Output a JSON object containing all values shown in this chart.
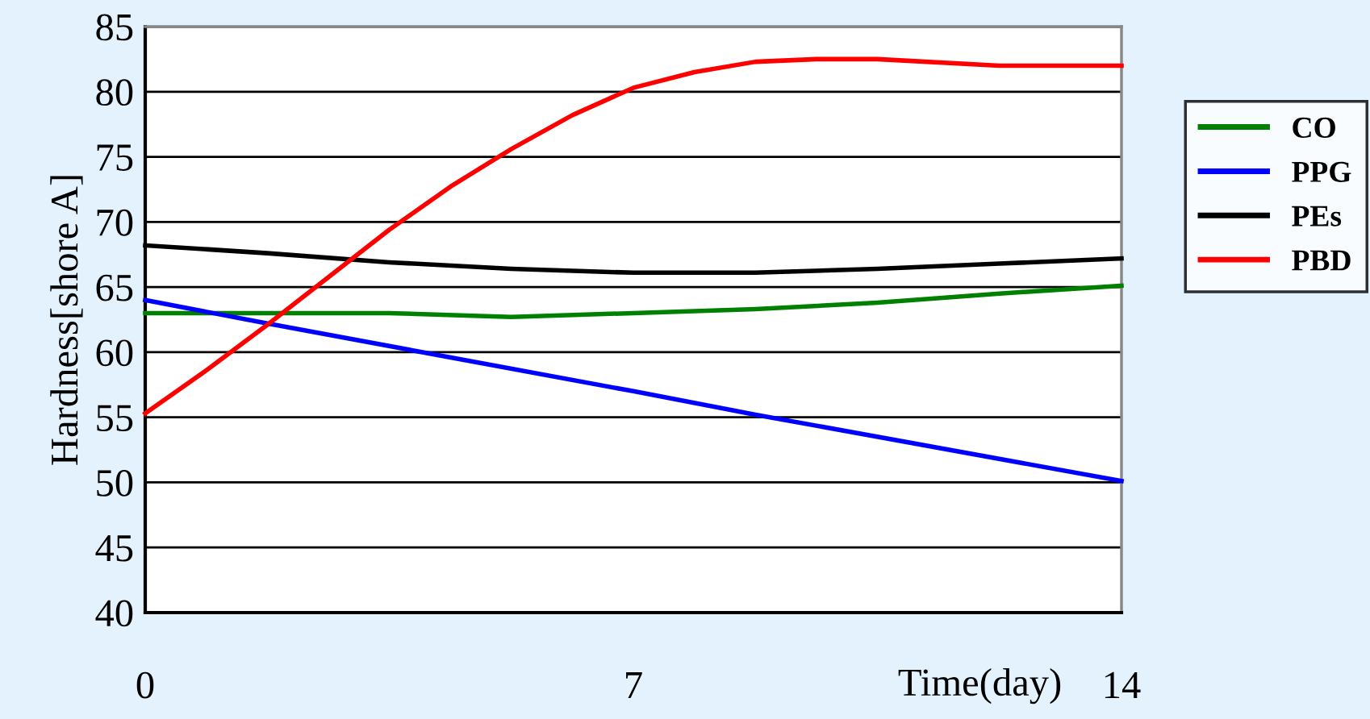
{
  "chart_data": {
    "type": "line",
    "xlabel": "Time(day)",
    "ylabel": "Hardness[shore A]",
    "xlim": [
      0,
      14
    ],
    "xticks": [
      0,
      7,
      14
    ],
    "ylim": [
      40,
      85
    ],
    "yticks": [
      40,
      45,
      50,
      55,
      60,
      65,
      70,
      75,
      80,
      85
    ],
    "grid": "y",
    "legend": "right",
    "marker": "none",
    "line_style": "solid",
    "series": [
      {
        "name": "CO",
        "color": "#008000",
        "x": [
          0,
          1.75,
          3.5,
          5.25,
          7,
          8.75,
          10.5,
          12.25,
          14
        ],
        "values": [
          63.0,
          63.0,
          63.0,
          62.7,
          63.0,
          63.3,
          63.8,
          64.5,
          65.1
        ]
      },
      {
        "name": "PPG",
        "color": "#0000ff",
        "x": [
          0,
          1.75,
          7,
          8.75,
          14
        ],
        "values": [
          64.0,
          62.2,
          57.0,
          55.2,
          50.1
        ]
      },
      {
        "name": "PEs",
        "color": "#000000",
        "x": [
          0,
          1.75,
          3.5,
          5.25,
          7,
          8.75,
          10.5,
          12.25,
          14
        ],
        "values": [
          68.2,
          67.6,
          66.9,
          66.4,
          66.1,
          66.1,
          66.4,
          66.8,
          67.2
        ]
      },
      {
        "name": "PBD",
        "color": "#ff0000",
        "x": [
          0,
          0.875,
          1.75,
          3.5,
          4.375,
          5.25,
          6.125,
          7,
          7.875,
          8.75,
          9.625,
          10.5,
          12.25,
          14
        ],
        "values": [
          55.3,
          58.6,
          62.1,
          69.4,
          72.7,
          75.6,
          78.2,
          80.3,
          81.5,
          82.3,
          82.5,
          82.5,
          82.0,
          82.0
        ]
      }
    ]
  }
}
